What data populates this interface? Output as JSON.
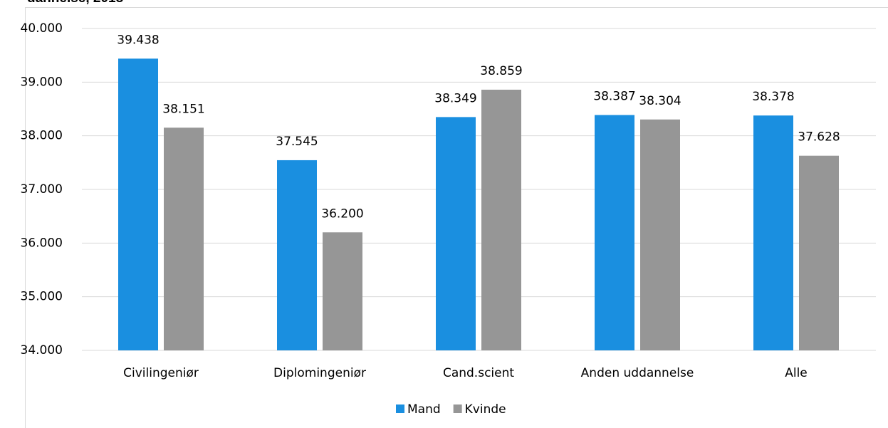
{
  "chart_data": {
    "type": "bar",
    "title": "dannelse, 2018",
    "categories": [
      "Civilingeniør",
      "Diplomingeniør",
      "Cand.scient",
      "Anden uddannelse",
      "Alle"
    ],
    "series": [
      {
        "name": "Mand",
        "color": "#1a8fe0",
        "values": [
          39438,
          37545,
          38349,
          38387,
          38378
        ],
        "value_labels": [
          "39.438",
          "37.545",
          "38.349",
          "38.387",
          "38.378"
        ]
      },
      {
        "name": "Kvinde",
        "color": "#969696",
        "values": [
          38151,
          36200,
          38859,
          38304,
          37628
        ],
        "value_labels": [
          "38.151",
          "36.200",
          "38.859",
          "38.304",
          "37.628"
        ]
      }
    ],
    "ylim": [
      34000,
      40000
    ],
    "yticks": [
      {
        "value": 34000,
        "label": "34.000"
      },
      {
        "value": 35000,
        "label": "35.000"
      },
      {
        "value": 36000,
        "label": "36.000"
      },
      {
        "value": 37000,
        "label": "37.000"
      },
      {
        "value": 38000,
        "label": "38.000"
      },
      {
        "value": 39000,
        "label": "39.000"
      },
      {
        "value": 40000,
        "label": "40.000"
      }
    ],
    "grid": true,
    "legend": "bottom"
  }
}
